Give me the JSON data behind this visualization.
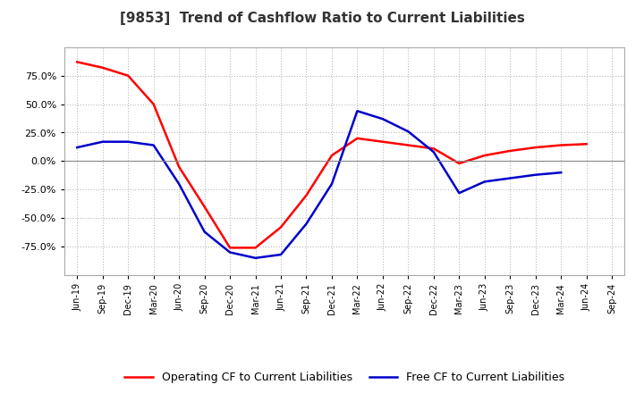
{
  "title": "[9853]  Trend of Cashflow Ratio to Current Liabilities",
  "x_labels": [
    "Jun-19",
    "Sep-19",
    "Dec-19",
    "Mar-20",
    "Jun-20",
    "Sep-20",
    "Dec-20",
    "Mar-21",
    "Jun-21",
    "Sep-21",
    "Dec-21",
    "Mar-22",
    "Jun-22",
    "Sep-22",
    "Dec-22",
    "Mar-23",
    "Jun-23",
    "Sep-23",
    "Dec-23",
    "Mar-24",
    "Jun-24",
    "Sep-24"
  ],
  "operating_cf": [
    87,
    82,
    75,
    50,
    -5,
    -40,
    -76,
    -76,
    -58,
    -30,
    5,
    20,
    17,
    14,
    11,
    -2,
    5,
    9,
    12,
    14,
    15,
    null
  ],
  "free_cf": [
    12,
    17,
    17,
    14,
    -20,
    -62,
    -80,
    -85,
    -82,
    -55,
    -20,
    44,
    37,
    26,
    8,
    -28,
    -18,
    -15,
    -12,
    -10,
    null,
    null
  ],
  "operating_color": "#FF0000",
  "free_color": "#0000CC",
  "background_color": "#FFFFFF",
  "plot_bg_color": "#FFFFFF",
  "grid_color": "#AAAAAA",
  "ylim": [
    -100,
    100
  ],
  "yticks": [
    -75,
    -50,
    -25,
    0,
    25,
    50,
    75
  ],
  "legend_labels": [
    "Operating CF to Current Liabilities",
    "Free CF to Current Liabilities"
  ]
}
